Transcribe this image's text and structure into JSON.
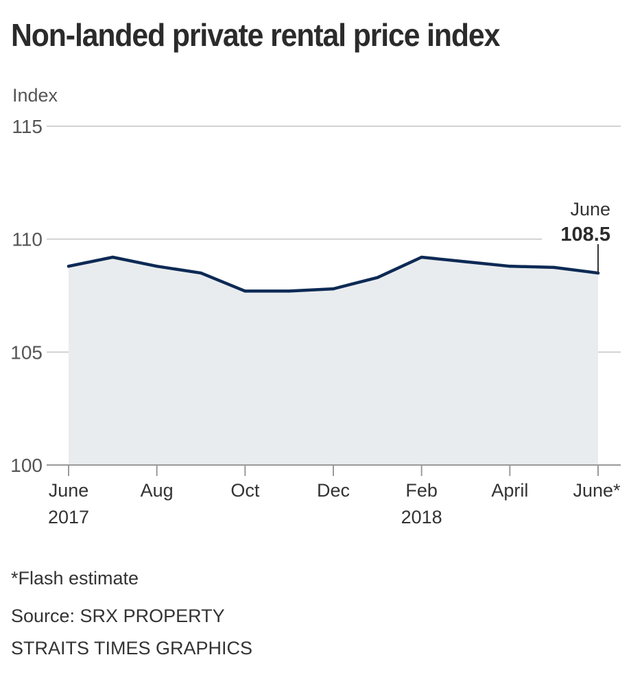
{
  "title": "Non-landed private rental price index",
  "footnote": "*Flash estimate",
  "source": "Source: SRX PROPERTY",
  "credit": "STRAITS TIMES GRAPHICS",
  "colors": {
    "line": "#0d2a55",
    "area": "#e9ecee",
    "grid": "#c4c4c4",
    "axis": "#9a9a9a",
    "annotation_leader": "#333333"
  },
  "chart_data": {
    "type": "area",
    "title": "Non-landed private rental price index",
    "ylabel": "Index",
    "xlabel": "",
    "ylim": [
      100,
      115
    ],
    "yticks": [
      100,
      105,
      110,
      115
    ],
    "ytick_labels": [
      "100",
      "105",
      "110",
      "115"
    ],
    "grid": true,
    "x": [
      "Jun 2017",
      "Jul 2017",
      "Aug 2017",
      "Sep 2017",
      "Oct 2017",
      "Nov 2017",
      "Dec 2017",
      "Jan 2018",
      "Feb 2018",
      "Mar 2018",
      "Apr 2018",
      "May 2018",
      "Jun 2018"
    ],
    "series": [
      {
        "name": "Non-landed private rental price index",
        "values": [
          108.8,
          109.2,
          108.8,
          108.5,
          107.7,
          107.7,
          107.8,
          108.3,
          109.2,
          109.0,
          108.8,
          108.75,
          108.5
        ]
      }
    ],
    "xticks": [
      {
        "index": 0,
        "label": "June",
        "sublabel": "2017"
      },
      {
        "index": 2,
        "label": "Aug",
        "sublabel": ""
      },
      {
        "index": 4,
        "label": "Oct",
        "sublabel": ""
      },
      {
        "index": 6,
        "label": "Dec",
        "sublabel": ""
      },
      {
        "index": 8,
        "label": "Feb",
        "sublabel": "2018"
      },
      {
        "index": 10,
        "label": "April",
        "sublabel": ""
      },
      {
        "index": 12,
        "label": "June*",
        "sublabel": ""
      }
    ],
    "annotation": {
      "index": 12,
      "label": "June",
      "value": "108.5"
    }
  }
}
